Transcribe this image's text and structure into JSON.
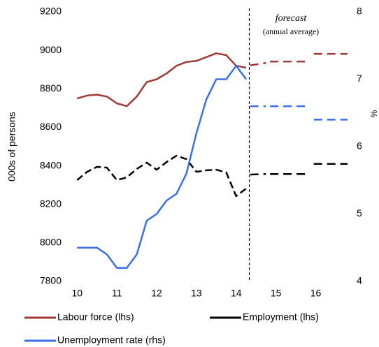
{
  "chart_data": {
    "type": "line",
    "annotations": [
      "forecast",
      "(annual average)"
    ],
    "ylabel": "000s of persons",
    "y2label": "%",
    "x": [
      10,
      10.25,
      10.5,
      10.75,
      11,
      11.25,
      11.5,
      11.75,
      12,
      12.25,
      12.5,
      12.75,
      13,
      13.25,
      13.5,
      13.75,
      14,
      14.25
    ],
    "forecast_start": 14.33,
    "forecast_x": [
      14.35,
      14.75,
      14.8,
      14.85,
      15.75,
      15.8,
      15.95,
      16.8
    ],
    "series": [
      {
        "name": "Labour force (lhs)",
        "color": "#9e3b38",
        "values": [
          8750,
          8765,
          8770,
          8760,
          8725,
          8710,
          8760,
          8835,
          8850,
          8880,
          8920,
          8940,
          8945,
          8965,
          8985,
          8975,
          8920,
          8910
        ],
        "forecast": [
          8922,
          8935,
          null,
          8942,
          8942,
          null,
          8982,
          8982
        ]
      },
      {
        "name": "Employment (lhs)",
        "color": "#000000",
        "dashed": true,
        "values": [
          8326,
          8369,
          8395,
          8391,
          8326,
          8340,
          8384,
          8417,
          8380,
          8420,
          8453,
          8435,
          8369,
          8377,
          8380,
          8366,
          8243,
          8282
        ],
        "forecast": [
          8355,
          8358,
          null,
          8358,
          8358,
          null,
          8410,
          8410
        ]
      },
      {
        "name": "Unemployment rate (rhs)",
        "color": "#3b6fe8",
        "axis": "y2",
        "values": [
          4.5,
          4.5,
          4.5,
          4.4,
          4.2,
          4.2,
          4.4,
          4.9,
          5.0,
          5.2,
          5.3,
          5.6,
          6.2,
          6.7,
          7.0,
          7.0,
          7.2,
          7.0
        ],
        "forecast": [
          6.6,
          6.6,
          null,
          6.6,
          6.6,
          null,
          6.4,
          6.4
        ]
      }
    ],
    "xlim": [
      9.82,
      16.8
    ],
    "xticks": [
      10,
      11,
      12,
      13,
      14,
      15,
      16
    ],
    "ylim": [
      7800,
      9200
    ],
    "yticks": [
      7800,
      8000,
      8200,
      8400,
      8600,
      8800,
      9000,
      9200
    ],
    "y2lim": [
      4,
      8
    ],
    "y2ticks": [
      4,
      5,
      6,
      7,
      8
    ]
  }
}
